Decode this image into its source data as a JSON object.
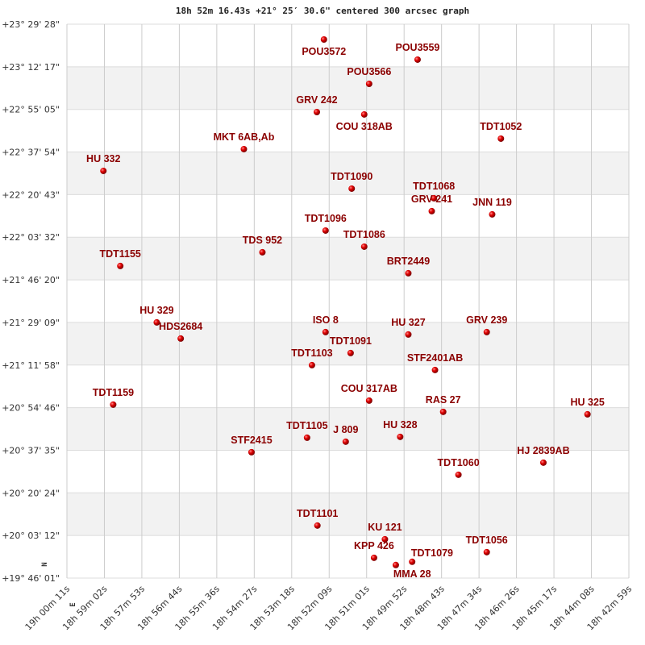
{
  "chart_data": {
    "type": "scatter",
    "title": "18h 52m 16.43s +21° 25′ 30.6\" centered 300 arcsec graph",
    "xlabel": "",
    "ylabel": "",
    "x_axis": "right ascension (decreasing to the right)",
    "y_axis": "declination",
    "xlim": [
      "19h00m11s",
      "18h42m59s"
    ],
    "ylim": [
      "+19°46'01\"",
      "+23°29'28\""
    ],
    "x_ticks": [
      "19h 00m 11s",
      "18h 59m 02s",
      "18h 57m 53s",
      "18h 56m 44s",
      "18h 55m 36s",
      "18h 54m 27s",
      "18h 53m 18s",
      "18h 52m 09s",
      "18h 51m 01s",
      "18h 49m 52s",
      "18h 48m 43s",
      "18h 47m 34s",
      "18h 46m 26s",
      "18h 45m 17s",
      "18h 44m 08s",
      "18h 42m 59s"
    ],
    "y_ticks": [
      "+23° 29' 28\"",
      "+23° 12' 17\"",
      "+22° 55' 05\"",
      "+22° 37' 54\"",
      "+22° 20' 43\"",
      "+22° 03' 32\"",
      "+21° 46' 20\"",
      "+21° 29' 09\"",
      "+21° 11' 58\"",
      "+20° 54' 46\"",
      "+20° 37' 35\"",
      "+20° 20' 24\"",
      "+20° 03' 12\"",
      "+19° 46' 01\""
    ],
    "grid": true,
    "compass": {
      "north": "N",
      "east": "E"
    },
    "colors": {
      "label": "#8b0000",
      "point": "#e00000",
      "band": "#f2f2f2",
      "grid": "#cccccc"
    },
    "points": [
      {
        "name": "POU3572",
        "ra": "18:52:19",
        "dec": "+23:23:17"
      },
      {
        "name": "POU3559",
        "ra": "18:49:27",
        "dec": "+23:15:10"
      },
      {
        "name": "POU3566",
        "ra": "18:50:56",
        "dec": "+23:05:24"
      },
      {
        "name": "GRV 242",
        "ra": "18:52:32",
        "dec": "+22:54:01"
      },
      {
        "name": "COU 318AB",
        "ra": "18:51:05",
        "dec": "+22:53:03"
      },
      {
        "name": "TDT1052",
        "ra": "18:46:54",
        "dec": "+22:43:18"
      },
      {
        "name": "MKT 6AB,Ab",
        "ra": "18:54:46",
        "dec": "+22:39:04"
      },
      {
        "name": "HU 332",
        "ra": "18:59:04",
        "dec": "+22:30:17"
      },
      {
        "name": "TDT1090",
        "ra": "18:51:28",
        "dec": "+22:23:08"
      },
      {
        "name": "TDT1068",
        "ra": "18:48:57",
        "dec": "+22:19:14"
      },
      {
        "name": "GRV 241",
        "ra": "18:49:01",
        "dec": "+22:14:02"
      },
      {
        "name": "JNN 119",
        "ra": "18:47:10",
        "dec": "+22:12:44"
      },
      {
        "name": "TDT1096",
        "ra": "18:52:16",
        "dec": "+22:06:13"
      },
      {
        "name": "TDT1086",
        "ra": "18:51:05",
        "dec": "+21:59:43"
      },
      {
        "name": "TDS 952",
        "ra": "18:54:12",
        "dec": "+21:57:27"
      },
      {
        "name": "TDT1155",
        "ra": "18:58:33",
        "dec": "+21:51:55"
      },
      {
        "name": "BRT2449",
        "ra": "18:49:44",
        "dec": "+21:48:59"
      },
      {
        "name": "HU 329",
        "ra": "18:57:26",
        "dec": "+21:29:09"
      },
      {
        "name": "HDS2684",
        "ra": "18:56:42",
        "dec": "+21:22:39"
      },
      {
        "name": "ISO 8",
        "ra": "18:52:16",
        "dec": "+21:25:15"
      },
      {
        "name": "HU 327",
        "ra": "18:49:44",
        "dec": "+21:24:17"
      },
      {
        "name": "GRV 239",
        "ra": "18:47:20",
        "dec": "+21:25:15"
      },
      {
        "name": "TDT1091",
        "ra": "18:51:30",
        "dec": "+21:16:48"
      },
      {
        "name": "TDT1103",
        "ra": "18:52:41",
        "dec": "+21:11:55"
      },
      {
        "name": "STF2401AB",
        "ra": "18:48:55",
        "dec": "+21:09:58"
      },
      {
        "name": "COU 317AB",
        "ra": "18:50:56",
        "dec": "+20:57:37"
      },
      {
        "name": "TDT1159",
        "ra": "18:58:46",
        "dec": "+20:55:59"
      },
      {
        "name": "RAS 27",
        "ra": "18:48:40",
        "dec": "+20:53:04"
      },
      {
        "name": "HU 325",
        "ra": "18:44:15",
        "dec": "+20:52:05"
      },
      {
        "name": "TDT1105",
        "ra": "18:52:50",
        "dec": "+20:42:39"
      },
      {
        "name": "J 809",
        "ra": "18:51:39",
        "dec": "+20:41:02"
      },
      {
        "name": "HU 328",
        "ra": "18:49:59",
        "dec": "+20:42:59"
      },
      {
        "name": "STF2415",
        "ra": "18:54:32",
        "dec": "+20:36:48"
      },
      {
        "name": "HJ 2839AB",
        "ra": "18:45:36",
        "dec": "+20:32:35"
      },
      {
        "name": "TDT1060",
        "ra": "18:48:12",
        "dec": "+20:27:42"
      },
      {
        "name": "TDT1101",
        "ra": "18:52:31",
        "dec": "+20:07:13"
      },
      {
        "name": "KU 121",
        "ra": "18:50:27",
        "dec": "+20:01:41"
      },
      {
        "name": "KPP 426",
        "ra": "18:50:47",
        "dec": "+19:54:12"
      },
      {
        "name": "TDT1079",
        "ra": "18:50:07",
        "dec": "+19:51:17"
      },
      {
        "name": "MMA 28",
        "ra": "18:49:37",
        "dec": "+19:52:35"
      },
      {
        "name": "TDT1056",
        "ra": "18:47:20",
        "dec": "+19:56:29"
      }
    ]
  }
}
